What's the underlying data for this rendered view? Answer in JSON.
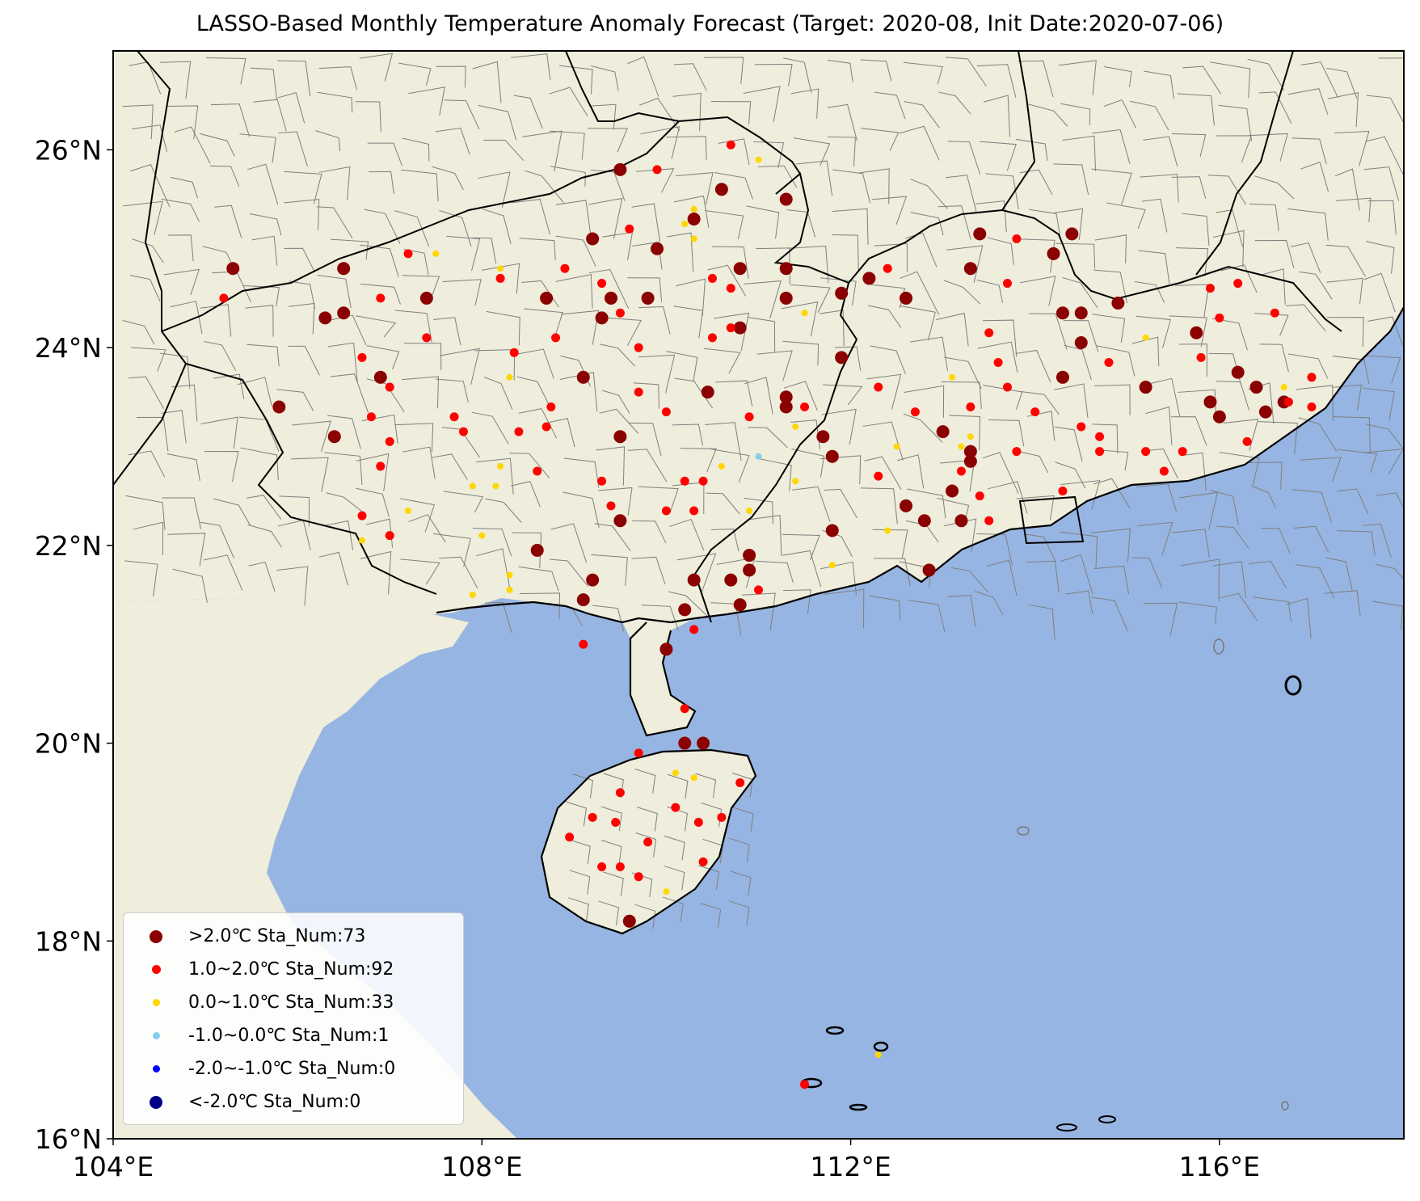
{
  "title": "LASSO-Based Monthly Temperature Anomaly Forecast (Target: 2020-08, Init Date:2020-07-06)",
  "colors": {
    "land": "#efeddb",
    "ocean": "#97b5e2",
    "boundary": "#000000",
    "county": "#7f7f7f"
  },
  "extent": {
    "lon": [
      104,
      118
    ],
    "lat": [
      16,
      27
    ]
  },
  "x_ticks": [
    {
      "lon": 104,
      "label": "104°E"
    },
    {
      "lon": 108,
      "label": "108°E"
    },
    {
      "lon": 112,
      "label": "112°E"
    },
    {
      "lon": 116,
      "label": "116°E"
    }
  ],
  "y_ticks": [
    {
      "lat": 16,
      "label": "16°N"
    },
    {
      "lat": 18,
      "label": "18°N"
    },
    {
      "lat": 20,
      "label": "20°N"
    },
    {
      "lat": 22,
      "label": "22°N"
    },
    {
      "lat": 24,
      "label": "24°N"
    },
    {
      "lat": 26,
      "label": "26°N"
    }
  ],
  "legend": [
    {
      "key": "gt2",
      "label": ">2.0℃ Sta_Num:73",
      "color": "#8b0000",
      "size": "large"
    },
    {
      "key": "1to2",
      "label": "1.0~2.0℃ Sta_Num:92",
      "color": "#ff0000",
      "size": "medium"
    },
    {
      "key": "0to1",
      "label": "0.0~1.0℃ Sta_Num:33",
      "color": "#ffd700",
      "size": "small"
    },
    {
      "key": "m1to0",
      "label": "-1.0~0.0℃ Sta_Num:1",
      "color": "#87ceeb",
      "size": "small"
    },
    {
      "key": "m2tom1",
      "label": "-2.0~-1.0℃ Sta_Num:0",
      "color": "#0000ff",
      "size": "small"
    },
    {
      "key": "ltm2",
      "label": "<-2.0℃ Sta_Num:0",
      "color": "#00008b",
      "size": "large"
    }
  ],
  "stations": {
    "gt2": [
      [
        105.3,
        24.8
      ],
      [
        105.8,
        23.4
      ],
      [
        106.3,
        24.3
      ],
      [
        106.5,
        24.8
      ],
      [
        106.5,
        24.35
      ],
      [
        106.4,
        23.1
      ],
      [
        106.9,
        23.7
      ],
      [
        107.4,
        24.5
      ],
      [
        108.7,
        24.5
      ],
      [
        108.6,
        21.95
      ],
      [
        109.2,
        25.1
      ],
      [
        109.1,
        23.7
      ],
      [
        109.4,
        24.5
      ],
      [
        109.3,
        24.3
      ],
      [
        109.8,
        24.5
      ],
      [
        109.5,
        25.8
      ],
      [
        109.5,
        23.1
      ],
      [
        109.5,
        22.25
      ],
      [
        109.9,
        25.0
      ],
      [
        110.3,
        25.3
      ],
      [
        110.6,
        25.6
      ],
      [
        110.8,
        24.8
      ],
      [
        110.8,
        24.2
      ],
      [
        111.3,
        25.5
      ],
      [
        111.3,
        24.8
      ],
      [
        111.3,
        24.5
      ],
      [
        111.3,
        23.4
      ],
      [
        111.3,
        23.5
      ],
      [
        110.45,
        23.55
      ],
      [
        110.9,
        21.9
      ],
      [
        110.9,
        21.75
      ],
      [
        110.7,
        21.65
      ],
      [
        110.3,
        21.65
      ],
      [
        110.2,
        21.35
      ],
      [
        110.8,
        21.4
      ],
      [
        110.0,
        20.95
      ],
      [
        110.2,
        20.0
      ],
      [
        110.4,
        20.0
      ],
      [
        109.6,
        18.2
      ],
      [
        109.2,
        21.65
      ],
      [
        109.1,
        21.45
      ],
      [
        111.9,
        24.55
      ],
      [
        112.2,
        24.7
      ],
      [
        111.9,
        23.9
      ],
      [
        111.7,
        23.1
      ],
      [
        111.8,
        22.9
      ],
      [
        111.8,
        22.15
      ],
      [
        112.6,
        24.5
      ],
      [
        112.6,
        22.4
      ],
      [
        112.8,
        22.25
      ],
      [
        112.85,
        21.75
      ],
      [
        113.0,
        23.15
      ],
      [
        113.3,
        22.85
      ],
      [
        113.3,
        22.95
      ],
      [
        113.1,
        22.55
      ],
      [
        113.2,
        22.25
      ],
      [
        113.3,
        24.8
      ],
      [
        113.4,
        25.15
      ],
      [
        114.2,
        24.95
      ],
      [
        114.4,
        25.15
      ],
      [
        114.3,
        24.35
      ],
      [
        114.5,
        24.35
      ],
      [
        114.5,
        24.05
      ],
      [
        114.3,
        23.7
      ],
      [
        114.9,
        24.45
      ],
      [
        115.2,
        23.6
      ],
      [
        115.75,
        24.15
      ],
      [
        115.9,
        23.45
      ],
      [
        116.0,
        23.3
      ],
      [
        116.2,
        23.75
      ],
      [
        116.4,
        23.6
      ],
      [
        116.5,
        23.35
      ],
      [
        116.7,
        23.45
      ]
    ],
    "1to2": [
      [
        105.2,
        24.5
      ],
      [
        106.7,
        23.9
      ],
      [
        106.9,
        24.5
      ],
      [
        107.2,
        24.95
      ],
      [
        107.4,
        24.1
      ],
      [
        107.0,
        23.6
      ],
      [
        106.8,
        23.3
      ],
      [
        107.0,
        23.05
      ],
      [
        106.9,
        22.8
      ],
      [
        106.7,
        22.3
      ],
      [
        107.0,
        22.1
      ],
      [
        107.7,
        23.3
      ],
      [
        107.8,
        23.15
      ],
      [
        108.2,
        24.7
      ],
      [
        108.35,
        23.95
      ],
      [
        108.4,
        23.15
      ],
      [
        108.6,
        22.75
      ],
      [
        108.9,
        24.8
      ],
      [
        108.8,
        24.1
      ],
      [
        108.75,
        23.4
      ],
      [
        108.7,
        23.2
      ],
      [
        109.3,
        24.65
      ],
      [
        109.5,
        24.35
      ],
      [
        109.6,
        25.2
      ],
      [
        109.3,
        22.65
      ],
      [
        109.4,
        22.4
      ],
      [
        109.9,
        25.8
      ],
      [
        109.7,
        24.0
      ],
      [
        109.7,
        23.55
      ],
      [
        110.0,
        23.35
      ],
      [
        110.2,
        22.65
      ],
      [
        110.4,
        22.65
      ],
      [
        110.3,
        22.35
      ],
      [
        110.0,
        22.35
      ],
      [
        110.5,
        24.7
      ],
      [
        110.5,
        24.1
      ],
      [
        110.7,
        24.6
      ],
      [
        110.7,
        24.2
      ],
      [
        110.7,
        26.05
      ],
      [
        110.9,
        23.3
      ],
      [
        111.0,
        21.55
      ],
      [
        110.3,
        21.15
      ],
      [
        110.2,
        20.35
      ],
      [
        109.7,
        19.9
      ],
      [
        109.5,
        19.5
      ],
      [
        109.2,
        19.25
      ],
      [
        109.45,
        19.2
      ],
      [
        108.95,
        19.05
      ],
      [
        109.8,
        19.0
      ],
      [
        110.1,
        19.35
      ],
      [
        110.35,
        19.2
      ],
      [
        110.6,
        19.25
      ],
      [
        110.8,
        19.6
      ],
      [
        109.5,
        18.75
      ],
      [
        109.3,
        18.75
      ],
      [
        109.7,
        18.65
      ],
      [
        110.4,
        18.8
      ],
      [
        109.1,
        21.0
      ],
      [
        111.5,
        23.4
      ],
      [
        112.4,
        24.8
      ],
      [
        112.3,
        23.6
      ],
      [
        112.3,
        22.7
      ],
      [
        112.7,
        23.35
      ],
      [
        113.3,
        23.4
      ],
      [
        113.2,
        22.75
      ],
      [
        113.4,
        22.5
      ],
      [
        113.5,
        22.25
      ],
      [
        113.5,
        24.15
      ],
      [
        113.6,
        23.85
      ],
      [
        113.7,
        24.65
      ],
      [
        113.8,
        25.1
      ],
      [
        113.7,
        23.6
      ],
      [
        113.8,
        22.95
      ],
      [
        114.0,
        23.35
      ],
      [
        114.3,
        22.55
      ],
      [
        114.5,
        23.2
      ],
      [
        114.7,
        23.1
      ],
      [
        114.7,
        22.95
      ],
      [
        114.8,
        23.85
      ],
      [
        115.2,
        22.95
      ],
      [
        115.4,
        22.75
      ],
      [
        115.6,
        22.95
      ],
      [
        115.8,
        23.9
      ],
      [
        115.9,
        24.6
      ],
      [
        116.0,
        24.3
      ],
      [
        116.2,
        24.65
      ],
      [
        116.3,
        23.05
      ],
      [
        116.6,
        24.35
      ],
      [
        117.0,
        23.7
      ],
      [
        117.0,
        23.4
      ],
      [
        116.75,
        23.45
      ],
      [
        111.5,
        16.55
      ]
    ],
    "0to1": [
      [
        107.5,
        24.95
      ],
      [
        108.2,
        24.8
      ],
      [
        108.3,
        23.7
      ],
      [
        108.15,
        22.6
      ],
      [
        107.9,
        22.6
      ],
      [
        108.2,
        22.8
      ],
      [
        107.2,
        22.35
      ],
      [
        106.7,
        22.05
      ],
      [
        108.0,
        22.1
      ],
      [
        108.3,
        21.7
      ],
      [
        108.3,
        21.55
      ],
      [
        107.9,
        21.5
      ],
      [
        110.2,
        25.25
      ],
      [
        110.3,
        25.4
      ],
      [
        110.3,
        25.1
      ],
      [
        111.0,
        25.9
      ],
      [
        110.6,
        22.8
      ],
      [
        110.9,
        22.35
      ],
      [
        111.4,
        22.65
      ],
      [
        111.4,
        23.2
      ],
      [
        111.5,
        24.35
      ],
      [
        111.8,
        21.8
      ],
      [
        112.4,
        22.15
      ],
      [
        112.5,
        23.0
      ],
      [
        113.1,
        23.7
      ],
      [
        113.2,
        23.0
      ],
      [
        113.3,
        23.1
      ],
      [
        115.2,
        24.1
      ],
      [
        116.7,
        23.6
      ],
      [
        110.1,
        19.7
      ],
      [
        110.3,
        19.65
      ],
      [
        110.0,
        18.5
      ],
      [
        112.3,
        16.85
      ]
    ],
    "m1to0": [
      [
        111.0,
        22.9
      ]
    ],
    "m2tom1": [],
    "ltm2": []
  }
}
